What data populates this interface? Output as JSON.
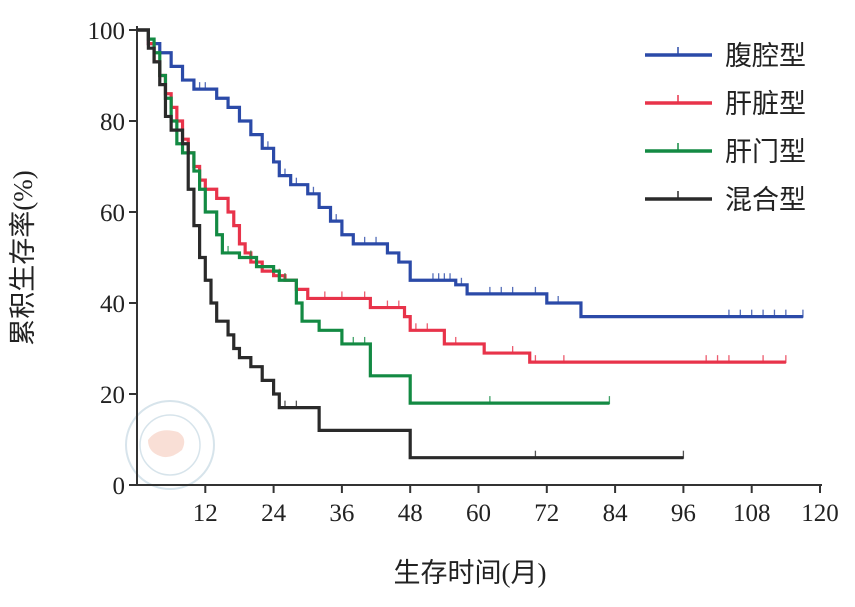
{
  "chart_data": {
    "type": "line",
    "subtype": "kaplan-meier step",
    "title": "",
    "xlabel": "生存时间(月)",
    "ylabel": "累积生存率(%)",
    "xlim": [
      0,
      120
    ],
    "ylim": [
      0,
      100
    ],
    "xticks": [
      12,
      24,
      36,
      48,
      60,
      72,
      84,
      96,
      108,
      120
    ],
    "yticks": [
      0,
      20,
      40,
      60,
      80,
      100
    ],
    "grid": false,
    "legend_position": "top-right",
    "series": [
      {
        "name": "腹腔型",
        "color": "#2b4aa8",
        "steps": [
          [
            0,
            100
          ],
          [
            2,
            97
          ],
          [
            4,
            95
          ],
          [
            6,
            92
          ],
          [
            8,
            89
          ],
          [
            10,
            87
          ],
          [
            14,
            85
          ],
          [
            16,
            83
          ],
          [
            18,
            80
          ],
          [
            20,
            77
          ],
          [
            22,
            74
          ],
          [
            24,
            71
          ],
          [
            25,
            68
          ],
          [
            27,
            66
          ],
          [
            30,
            64
          ],
          [
            32,
            61
          ],
          [
            34,
            58
          ],
          [
            36,
            55
          ],
          [
            38,
            53
          ],
          [
            44,
            51
          ],
          [
            46,
            49
          ],
          [
            48,
            45
          ],
          [
            56,
            44
          ],
          [
            58,
            42
          ],
          [
            72,
            40
          ],
          [
            78,
            37
          ],
          [
            117,
            37
          ]
        ],
        "censored": [
          10,
          11,
          12,
          16,
          20,
          23,
          26,
          28,
          31,
          35,
          40,
          42,
          44,
          52,
          53,
          54,
          55,
          57,
          62,
          64,
          66,
          70,
          72,
          74,
          104,
          106,
          108,
          110,
          112,
          114,
          117
        ]
      },
      {
        "name": "肝脏型",
        "color": "#e8334a",
        "steps": [
          [
            0,
            100
          ],
          [
            2,
            97
          ],
          [
            3,
            93
          ],
          [
            4,
            90
          ],
          [
            5,
            86
          ],
          [
            6,
            83
          ],
          [
            7,
            80
          ],
          [
            8,
            76
          ],
          [
            9,
            73
          ],
          [
            10,
            70
          ],
          [
            11,
            67
          ],
          [
            12,
            65
          ],
          [
            14,
            63
          ],
          [
            16,
            60
          ],
          [
            17,
            57
          ],
          [
            18,
            53
          ],
          [
            19,
            51
          ],
          [
            20,
            49
          ],
          [
            22,
            47
          ],
          [
            24,
            46
          ],
          [
            26,
            45
          ],
          [
            28,
            43
          ],
          [
            30,
            41
          ],
          [
            41,
            39
          ],
          [
            47,
            37
          ],
          [
            48,
            34
          ],
          [
            54,
            31
          ],
          [
            61,
            29
          ],
          [
            69,
            27
          ],
          [
            114,
            27
          ]
        ],
        "censored": [
          20,
          22,
          24,
          25,
          26,
          28,
          30,
          33,
          36,
          40,
          44,
          46,
          49,
          51,
          56,
          66,
          70,
          75,
          100,
          102,
          104,
          110,
          114
        ]
      },
      {
        "name": "肝门型",
        "color": "#138a43",
        "steps": [
          [
            0,
            100
          ],
          [
            2,
            98
          ],
          [
            3,
            95
          ],
          [
            4,
            90
          ],
          [
            5,
            85
          ],
          [
            6,
            80
          ],
          [
            7,
            75
          ],
          [
            8,
            73
          ],
          [
            10,
            69
          ],
          [
            11,
            65
          ],
          [
            12,
            60
          ],
          [
            14,
            55
          ],
          [
            15,
            51
          ],
          [
            18,
            50
          ],
          [
            21,
            48
          ],
          [
            24,
            47
          ],
          [
            25,
            45
          ],
          [
            28,
            40
          ],
          [
            29,
            36
          ],
          [
            32,
            34
          ],
          [
            36,
            31
          ],
          [
            41,
            24
          ],
          [
            48,
            18
          ],
          [
            83,
            18
          ]
        ],
        "censored": [
          16,
          20,
          26,
          32,
          36,
          38,
          40,
          48,
          62,
          83
        ]
      },
      {
        "name": "混合型",
        "color": "#2a2a2a",
        "steps": [
          [
            0,
            100
          ],
          [
            2,
            96
          ],
          [
            3,
            93
          ],
          [
            4,
            88
          ],
          [
            5,
            81
          ],
          [
            6,
            78
          ],
          [
            8,
            75
          ],
          [
            9,
            65
          ],
          [
            10,
            57
          ],
          [
            11,
            50
          ],
          [
            12,
            45
          ],
          [
            13,
            40
          ],
          [
            14,
            36
          ],
          [
            16,
            33
          ],
          [
            17,
            30
          ],
          [
            18,
            28
          ],
          [
            20,
            26
          ],
          [
            22,
            23
          ],
          [
            24,
            20
          ],
          [
            25,
            17
          ],
          [
            32,
            12
          ],
          [
            48,
            6
          ],
          [
            96,
            6
          ]
        ],
        "censored": [
          16,
          24,
          26,
          28,
          70,
          96
        ]
      }
    ]
  }
}
